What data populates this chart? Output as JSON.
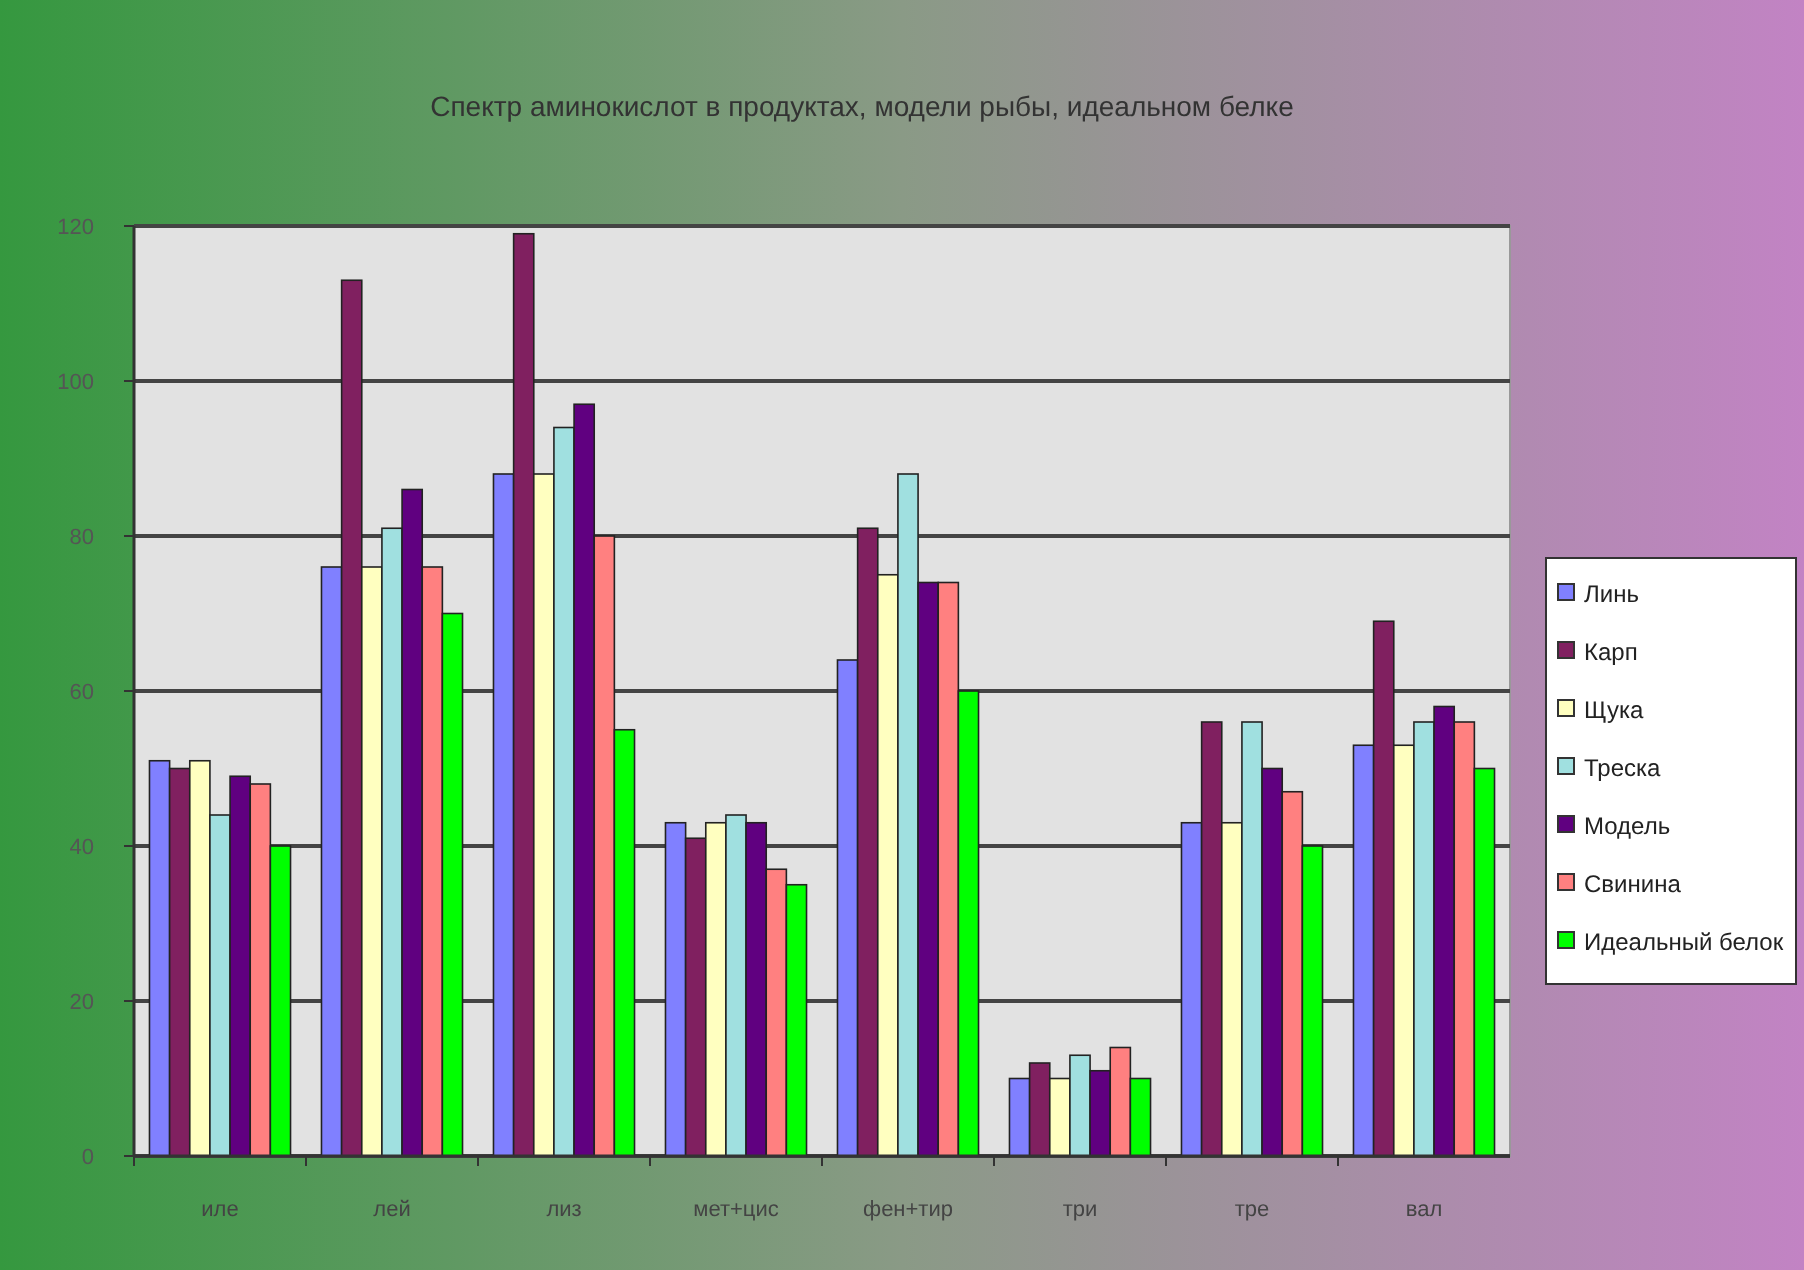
{
  "chart_data": {
    "type": "bar",
    "title": "Спектр аминокислот в продуктах, модели рыбы, идеальном белке",
    "categories": [
      "иле",
      "лей",
      "лиз",
      "мет+цис",
      "фен+тир",
      "три",
      "тре",
      "вал"
    ],
    "series": [
      {
        "name": "Линь",
        "color": "#8080ff",
        "values": [
          51,
          76,
          88,
          43,
          64,
          10,
          43,
          53
        ]
      },
      {
        "name": "Карп",
        "color": "#802060",
        "values": [
          50,
          113,
          119,
          41,
          81,
          12,
          56,
          69
        ]
      },
      {
        "name": "Щука",
        "color": "#ffffc0",
        "values": [
          51,
          76,
          88,
          43,
          75,
          10,
          43,
          53
        ]
      },
      {
        "name": "Треска",
        "color": "#a0e0e0",
        "values": [
          44,
          81,
          94,
          44,
          88,
          13,
          56,
          56
        ]
      },
      {
        "name": "Модель",
        "color": "#600080",
        "values": [
          49,
          86,
          97,
          43,
          74,
          11,
          50,
          58
        ]
      },
      {
        "name": "Свинина",
        "color": "#ff8080",
        "values": [
          48,
          76,
          80,
          37,
          74,
          14,
          47,
          56
        ]
      },
      {
        "name": "Идеальный белок",
        "color": "#00ff00",
        "values": [
          40,
          70,
          55,
          35,
          60,
          10,
          40,
          50
        ]
      }
    ],
    "ylim": [
      0,
      120
    ],
    "yticks": [
      0,
      20,
      40,
      60,
      80,
      100,
      120
    ],
    "grid": "y",
    "legend": "right"
  }
}
